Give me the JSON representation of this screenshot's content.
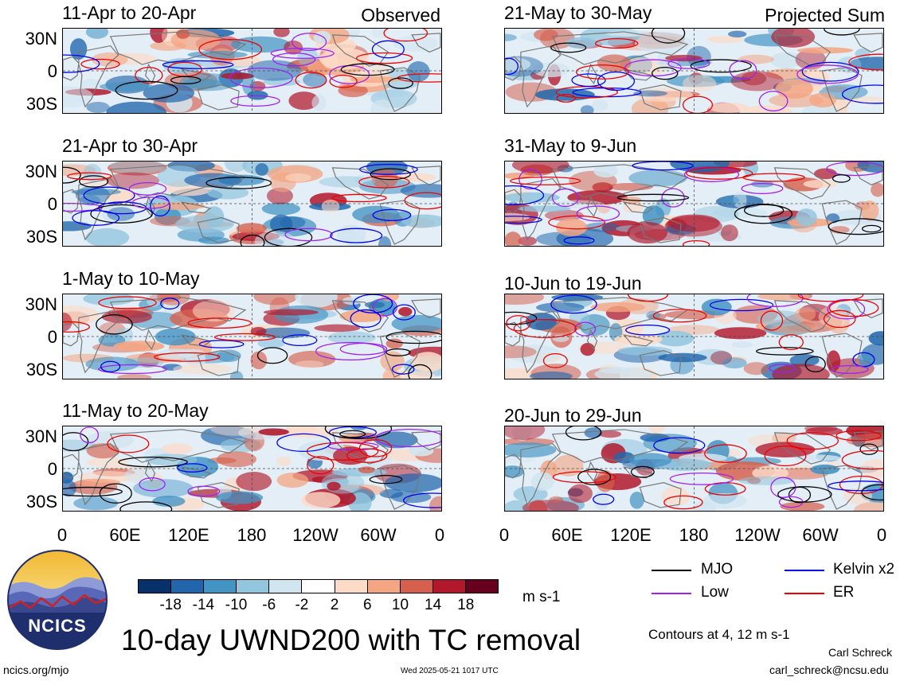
{
  "panels": [
    {
      "date": "11-Apr to 20-Apr",
      "label": "Observed",
      "seed": 11
    },
    {
      "date": "21-Apr to 30-Apr",
      "label": "",
      "seed": 23
    },
    {
      "date": "1-May to 10-May",
      "label": "",
      "seed": 37
    },
    {
      "date": "11-May to 20-May",
      "label": "",
      "seed": 41
    },
    {
      "date": "21-May to 30-May",
      "label": "Projected Sum",
      "seed": 53
    },
    {
      "date": "31-May to 9-Jun",
      "label": "",
      "seed": 67
    },
    {
      "date": "10-Jun to 19-Jun",
      "label": "",
      "seed": 71
    },
    {
      "date": "20-Jun to 29-Jun",
      "label": "",
      "seed": 89
    }
  ],
  "lat_labels": [
    "30N",
    "0",
    "30S"
  ],
  "lon_labels": [
    "0",
    "60E",
    "120E",
    "180",
    "120W",
    "60W",
    "0"
  ],
  "colorbar": {
    "ticks": [
      "-18",
      "-14",
      "-10",
      "-6",
      "-2",
      "2",
      "6",
      "10",
      "14",
      "18"
    ],
    "colors": [
      "#08306b",
      "#2166ac",
      "#4393c3",
      "#92c5de",
      "#d1e5f0",
      "#ffffff",
      "#fddbc7",
      "#f4a582",
      "#d6604d",
      "#b2182b",
      "#67001f"
    ],
    "units": "m s-1"
  },
  "legend": [
    {
      "name": "MJO",
      "color": "#000000"
    },
    {
      "name": "Kelvin x2",
      "color": "#0000ee"
    },
    {
      "name": "Low",
      "color": "#a020f0"
    },
    {
      "name": "ER",
      "color": "#ee0000"
    }
  ],
  "title": "10-day UWND200 with TC removal",
  "contours_note": "Contours at 4, 12 m s-1",
  "author": "Carl Schreck",
  "email": "carl_schreck@ncsu.edu",
  "site": "ncics.org/mjo",
  "timestamp": "Wed 2025-05-21 1017 UTC",
  "logo_text": "NCICS"
}
